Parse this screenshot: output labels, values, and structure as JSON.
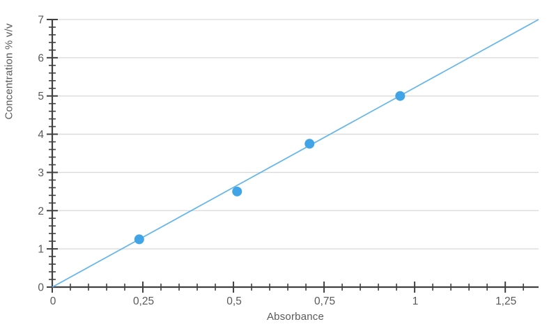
{
  "chart_data": {
    "type": "scatter",
    "title": "",
    "xlabel": "Absorbance",
    "ylabel": "Concentration % v/v",
    "xlim": [
      0,
      1.342
    ],
    "ylim": [
      0,
      7
    ],
    "grid": "horizontal-major-only",
    "legend": "none",
    "x_major_ticks": [
      {
        "value": 0,
        "label": "0"
      },
      {
        "value": 0.25,
        "label": "0,25"
      },
      {
        "value": 0.5,
        "label": "0,5"
      },
      {
        "value": 0.75,
        "label": "0,75"
      },
      {
        "value": 1,
        "label": "1"
      },
      {
        "value": 1.25,
        "label": "1,25"
      }
    ],
    "x_minor_step": 0.05,
    "x_minor_max": 1.3,
    "y_major_ticks": [
      {
        "value": 0,
        "label": "0"
      },
      {
        "value": 1,
        "label": "1"
      },
      {
        "value": 2,
        "label": "2"
      },
      {
        "value": 3,
        "label": "3"
      },
      {
        "value": 4,
        "label": "4"
      },
      {
        "value": 5,
        "label": "5"
      },
      {
        "value": 6,
        "label": "6"
      },
      {
        "value": 7,
        "label": "7"
      }
    ],
    "y_minor_step": 0.2,
    "series": [
      {
        "name": "calibration-points",
        "points": [
          {
            "x": 0.24,
            "y": 1.25
          },
          {
            "x": 0.51,
            "y": 2.5
          },
          {
            "x": 0.71,
            "y": 3.75
          },
          {
            "x": 0.96,
            "y": 5.0
          }
        ]
      }
    ],
    "trendline": {
      "x1": 0,
      "y1": 0,
      "x2": 1.342,
      "y2": 7
    },
    "colors": {
      "point": "#41A4E6",
      "trend_line": "#64B5EA",
      "gridline": "#D9D9D9",
      "axis": "#404040",
      "tick_label": "#595959",
      "axis_title": "#595959",
      "background": "#FFFFFF"
    }
  }
}
